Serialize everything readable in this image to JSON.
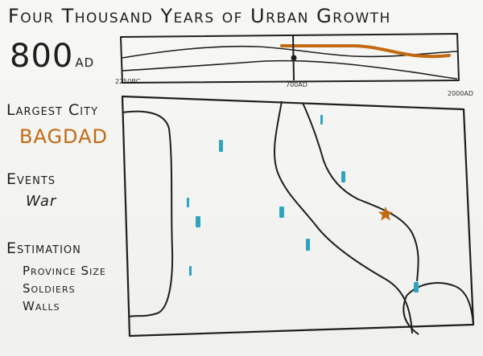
{
  "title": "Four Thousand Years of Urban Growth",
  "current_year": {
    "value": "800",
    "suffix": "AD"
  },
  "timeline": {
    "ticks": [
      "2250BC",
      "700AD",
      "2000AD"
    ]
  },
  "largest_city": {
    "label": "Largest City",
    "value": "BAGDAD"
  },
  "events": {
    "label": "Events",
    "items": [
      "War"
    ]
  },
  "estimation": {
    "label": "Estimation",
    "items": [
      "Province Size",
      "Soldiers",
      "Walls"
    ]
  },
  "colors": {
    "ink": "#1e1e1e",
    "accent_orange": "#c26a12",
    "marker_teal": "#2fa3c0"
  },
  "icons": {
    "city": "star-icon"
  }
}
